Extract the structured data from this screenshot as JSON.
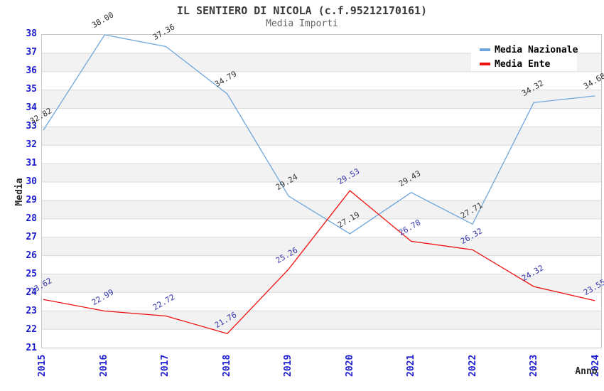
{
  "header": {
    "title": "IL SENTIERO DI NICOLA (c.f.95212170161)",
    "subtitle": "Media Importi"
  },
  "chart_data": {
    "type": "line",
    "title": "IL SENTIERO DI NICOLA (c.f.95212170161)",
    "subtitle": "Media Importi",
    "xlabel": "Anno",
    "ylabel": "Media",
    "categories": [
      "2015",
      "2016",
      "2017",
      "2018",
      "2019",
      "2020",
      "2021",
      "2022",
      "2023",
      "2024"
    ],
    "series": [
      {
        "name": "Media Nazionale",
        "color": "#6fa6db",
        "label_color": "#333333",
        "values": [
          32.82,
          38.0,
          37.36,
          34.79,
          29.24,
          27.19,
          29.43,
          27.71,
          34.32,
          34.68
        ]
      },
      {
        "name": "Media Ente",
        "color": "#ee1111",
        "label_color": "#3434ad",
        "values": [
          23.62,
          22.99,
          22.72,
          21.76,
          25.26,
          29.53,
          26.78,
          26.32,
          24.32,
          23.55
        ]
      }
    ],
    "ylim": [
      21,
      38
    ],
    "y_tick_step": 1,
    "value_decimals": 2,
    "grid": "horizontal",
    "legend_position": "top-right",
    "styles": {
      "band_color": "#f2f2f2",
      "grid_color": "#d9d9d9",
      "tick_color": "#1c1ccd",
      "plot_border_color": "#c6c6c6"
    }
  }
}
